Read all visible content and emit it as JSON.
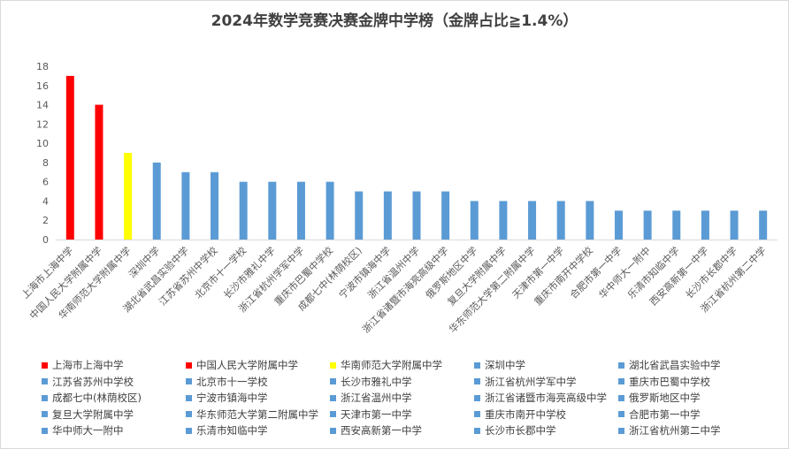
{
  "chart_data": {
    "type": "bar",
    "title": "2024年数学竞赛决赛金牌中学榜（金牌占比≧1.4%）",
    "xlabel": "",
    "ylabel": "",
    "ylim": [
      0,
      18
    ],
    "yticks": [
      0,
      2,
      4,
      6,
      8,
      10,
      12,
      14,
      16,
      18
    ],
    "grid": false,
    "legend_position": "bottom",
    "categories": [
      "上海市上海中学",
      "中国人民大学附属中学",
      "华南师范大学附属中学",
      "深圳中学",
      "湖北省武昌实验中学",
      "江苏省苏州中学校",
      "北京市十一学校",
      "长沙市雅礼中学",
      "浙江省杭州学军中学",
      "重庆市巴蜀中学校",
      "成都七中(林荫校区)",
      "宁波市镇海中学",
      "浙江省温州中学",
      "浙江省诸暨市海亮高级中学",
      "俄罗斯地区中学",
      "复旦大学附属中学",
      "华东师范大学第二附属中学",
      "天津市第一中学",
      "重庆市南开中学校",
      "合肥市第一中学",
      "华中师大一附中",
      "乐清市知临中学",
      "西安高新第一中学",
      "长沙市长郡中学",
      "浙江省杭州第二中学"
    ],
    "values": [
      17,
      14,
      9,
      8,
      7,
      7,
      6,
      6,
      6,
      6,
      5,
      5,
      5,
      5,
      4,
      4,
      4,
      4,
      4,
      3,
      3,
      3,
      3,
      3,
      3
    ],
    "colors": [
      "#ff0000",
      "#ff0000",
      "#ffff00",
      "#5b9bd5",
      "#5b9bd5",
      "#5b9bd5",
      "#5b9bd5",
      "#5b9bd5",
      "#5b9bd5",
      "#5b9bd5",
      "#5b9bd5",
      "#5b9bd5",
      "#5b9bd5",
      "#5b9bd5",
      "#5b9bd5",
      "#5b9bd5",
      "#5b9bd5",
      "#5b9bd5",
      "#5b9bd5",
      "#5b9bd5",
      "#5b9bd5",
      "#5b9bd5",
      "#5b9bd5",
      "#5b9bd5",
      "#5b9bd5"
    ]
  }
}
